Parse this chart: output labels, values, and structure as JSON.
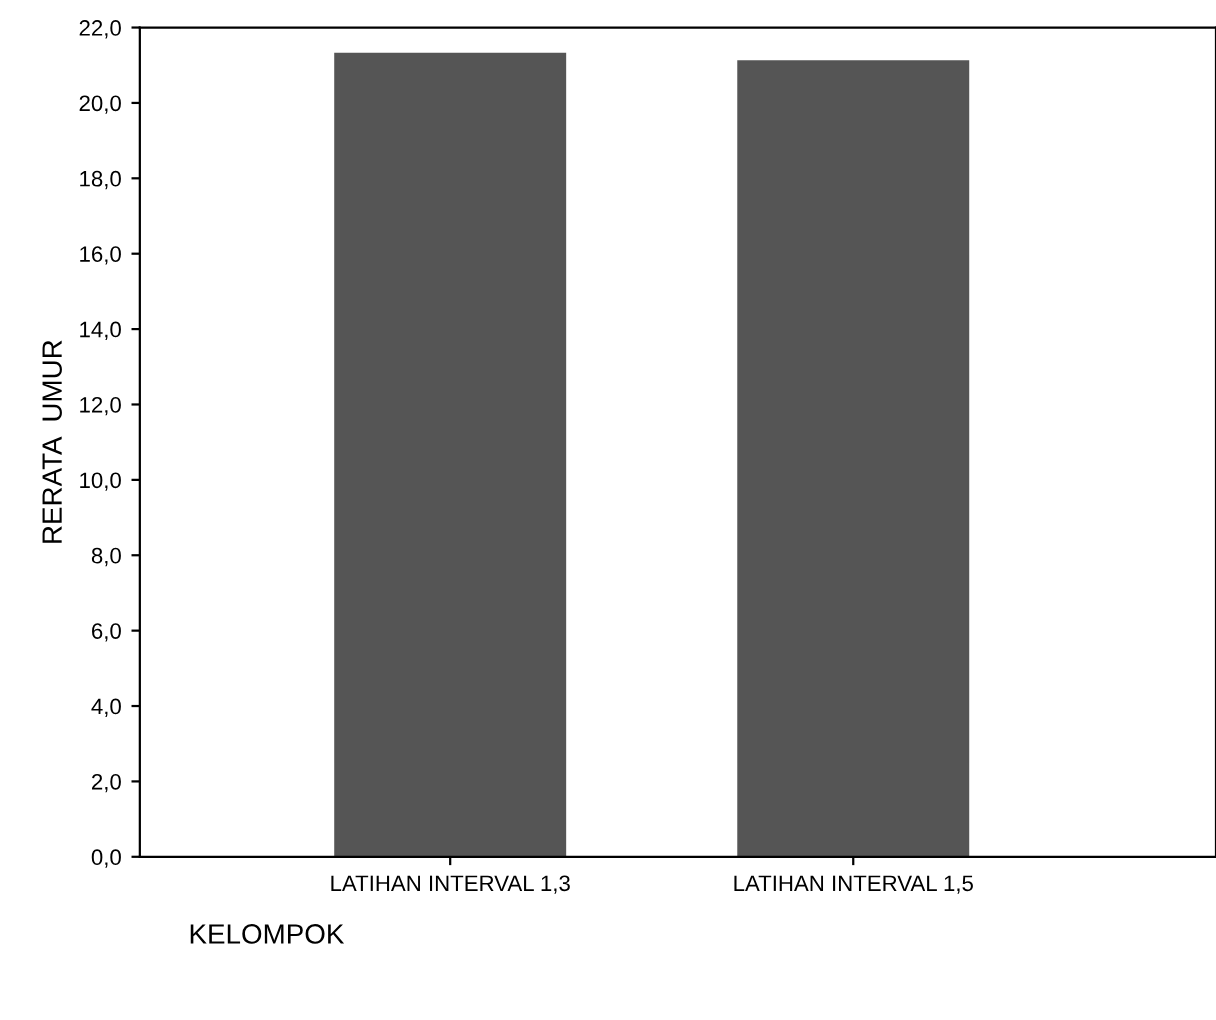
{
  "chart_data": {
    "type": "bar",
    "xlabel": "KELOMPOK",
    "ylabel": "RERATA  UMUR",
    "categories": [
      "LATIHAN INTERVAL 1,3",
      "LATIHAN INTERVAL 1,5"
    ],
    "values": [
      21.3,
      21.1
    ],
    "color": "#555555",
    "ylim": [
      0,
      22
    ],
    "yticks": [
      {
        "value": 0,
        "label": "0,0"
      },
      {
        "value": 2,
        "label": "2,0"
      },
      {
        "value": 4,
        "label": "4,0"
      },
      {
        "value": 6,
        "label": "6,0"
      },
      {
        "value": 8,
        "label": "8,0"
      },
      {
        "value": 10,
        "label": "10,0"
      },
      {
        "value": 12,
        "label": "12,0"
      },
      {
        "value": 14,
        "label": "14,0"
      },
      {
        "value": 16,
        "label": "16,0"
      },
      {
        "value": 18,
        "label": "18,0"
      },
      {
        "value": 20,
        "label": "20,0"
      },
      {
        "value": 22,
        "label": "22,0"
      }
    ],
    "grid": false
  }
}
